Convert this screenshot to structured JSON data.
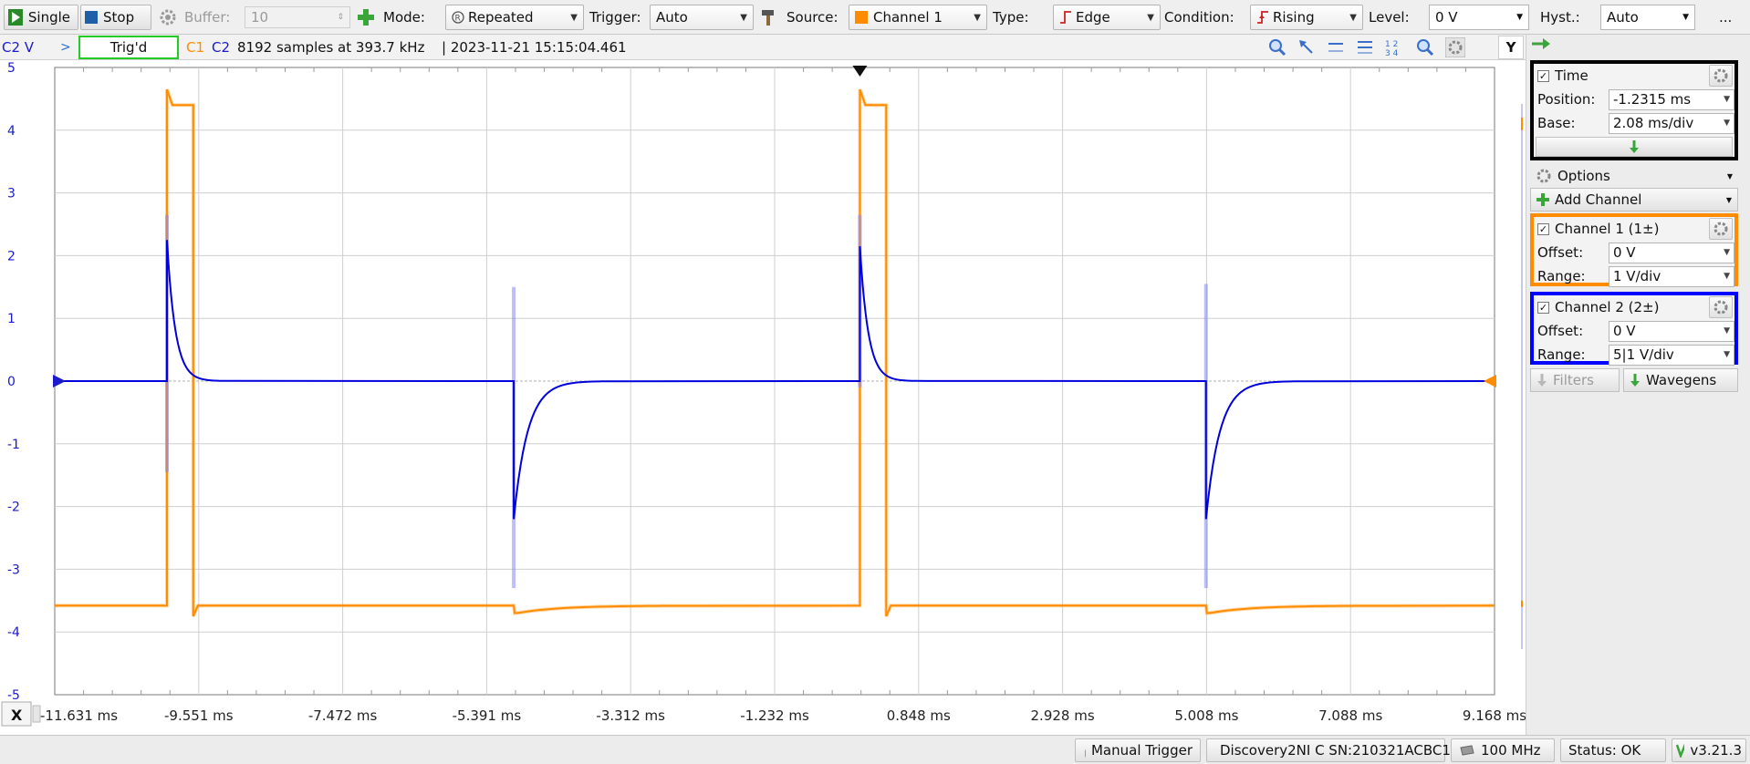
{
  "toolbar": {
    "single_label": "Single",
    "stop_label": "Stop",
    "buffer_label": "Buffer:",
    "buffer_value": "10",
    "mode_label": "Mode:",
    "mode_value": "Repeated",
    "trigger_label": "Trigger:",
    "trigger_value": "Auto",
    "source_label": "Source:",
    "source_value": "Channel 1",
    "type_label": "Type:",
    "type_value": "Edge",
    "condition_label": "Condition:",
    "condition_value": "Rising",
    "level_label": "Level:",
    "level_value": "0 V",
    "hyst_label": "Hyst.:",
    "hyst_value": "Auto",
    "more_label": "..."
  },
  "infobar": {
    "axis_label": "C2 V",
    "status": "Trig'd",
    "c1": "C1",
    "c2": "C2",
    "sample_info": "8192 samples at 393.7 kHz",
    "timestamp": "| 2023-11-21 15:15:04.461",
    "y_button": "Y"
  },
  "chart_data": {
    "type": "line",
    "xlabel": "",
    "ylabel": "C2 V",
    "x_unit": "ms",
    "xlim": [
      -11.631,
      9.168
    ],
    "ylim": [
      -5,
      5
    ],
    "y_ticks": [
      "5",
      "4",
      "3",
      "2",
      "1",
      "0",
      "-1",
      "-2",
      "-3",
      "-4",
      "-5"
    ],
    "x_ticks": [
      "-11.631 ms",
      "-9.551 ms",
      "-7.472 ms",
      "-5.391 ms",
      "-3.312 ms",
      "-1.232 ms",
      "0.848 ms",
      "2.928 ms",
      "5.008 ms",
      "7.088 ms",
      "9.168 ms"
    ],
    "x_axis_name": "X",
    "grid": true,
    "channel1": {
      "name": "C1",
      "color": "#ff8c00",
      "low": -3.58,
      "high": 4.4,
      "pulses": [
        {
          "rise": -10.01,
          "fall": -9.63,
          "falloff_edge": -5.0
        },
        {
          "rise": 0.0,
          "fall": 0.38,
          "falloff_edge": 5.0
        }
      ]
    },
    "channel2": {
      "name": "C2",
      "color": "#0000dd",
      "baseline": 0.0,
      "events": [
        {
          "t": -10.01,
          "peak": 2.25,
          "tau": 0.12
        },
        {
          "t": -5.0,
          "peak": -2.2,
          "tau": 0.2
        },
        {
          "t": 0.0,
          "peak": 2.15,
          "tau": 0.12
        },
        {
          "t": 5.0,
          "peak": -2.2,
          "tau": 0.2
        }
      ],
      "overlay_bands": [
        {
          "t": -10.01,
          "from": -1.45,
          "to": 2.65
        },
        {
          "t": -5.0,
          "from": -3.3,
          "to": 1.5
        },
        {
          "t": 0.0,
          "from": -0.1,
          "to": 2.65
        },
        {
          "t": 5.0,
          "from": -3.3,
          "to": 1.55
        }
      ]
    }
  },
  "panel": {
    "time": {
      "title": "Time",
      "position_label": "Position:",
      "position_value": "-1.2315 ms",
      "base_label": "Base:",
      "base_value": "2.08 ms/div",
      "border_color": "#000000"
    },
    "options_label": "Options",
    "add_channel_label": "Add Channel",
    "ch1": {
      "title": "Channel 1 (1±)",
      "offset_label": "Offset:",
      "offset_value": "0 V",
      "range_label": "Range:",
      "range_value": "1 V/div",
      "border_color": "#ff8c00"
    },
    "ch2": {
      "title": "Channel 2 (2±)",
      "offset_label": "Offset:",
      "offset_value": "0 V",
      "range_label": "Range:",
      "range_value": "5|1 V/div",
      "border_color": "#0000ff"
    },
    "filters_label": "Filters",
    "wavegens_label": "Wavegens"
  },
  "statusbar": {
    "manual_trigger": "Manual Trigger",
    "device": "Discovery2NI C SN:210321ACBC12",
    "clock": "100 MHz",
    "status": "Status: OK",
    "version": "v3.21.3"
  }
}
